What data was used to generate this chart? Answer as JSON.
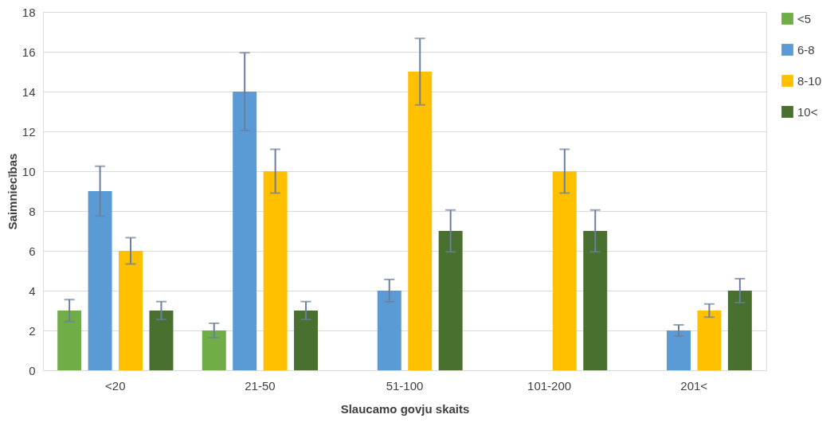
{
  "chart_data": {
    "type": "bar",
    "xlabel": "Slaucamo govju skaits",
    "ylabel": "Saimniecības",
    "categories": [
      "<20",
      "21-50",
      "51-100",
      "101-200",
      "201<"
    ],
    "series": [
      {
        "name": "<5",
        "color": "#70ad47",
        "values": [
          3,
          2,
          null,
          null,
          null
        ],
        "errors": [
          0.55,
          0.36,
          null,
          null,
          null
        ]
      },
      {
        "name": "6-8",
        "color": "#5b9bd5",
        "values": [
          9,
          14,
          4,
          null,
          2
        ],
        "errors": [
          1.25,
          1.95,
          0.56,
          null,
          0.28
        ]
      },
      {
        "name": "8-10",
        "color": "#ffc000",
        "values": [
          6,
          10,
          15,
          10,
          3
        ],
        "errors": [
          0.66,
          1.1,
          1.67,
          1.1,
          0.33
        ]
      },
      {
        "name": "10<",
        "color": "#4a7030",
        "values": [
          3,
          3,
          7,
          7,
          4
        ],
        "errors": [
          0.45,
          0.45,
          1.05,
          1.05,
          0.6
        ]
      }
    ],
    "ylim": [
      0,
      18
    ],
    "yticks": [
      0,
      2,
      4,
      6,
      8,
      10,
      12,
      14,
      16,
      18
    ],
    "grid": "y",
    "legend": "right"
  }
}
